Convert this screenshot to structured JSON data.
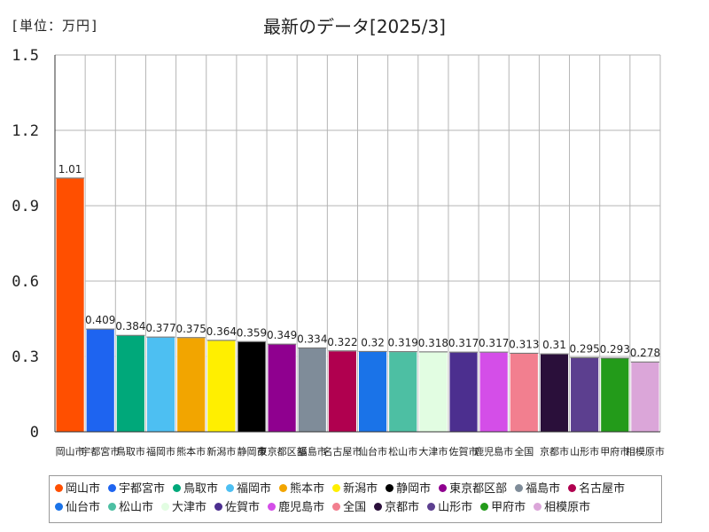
{
  "unit_label": "[単位：万円]",
  "chart_data": {
    "type": "bar",
    "title": "最新のデータ[2025/3]",
    "xlabel": "",
    "ylabel": "単位：万円",
    "ylim": [
      0,
      1.5
    ],
    "yticks": [
      "0",
      "0.3",
      "0.6",
      "0.9",
      "1.2",
      "1.5"
    ],
    "ytick_values": [
      0,
      0.3,
      0.6,
      0.9,
      1.2,
      1.5
    ],
    "grid": true,
    "legend_position": "bottom",
    "categories": [
      "岡山市",
      "宇都宮市",
      "鳥取市",
      "福岡市",
      "熊本市",
      "新潟市",
      "静岡市",
      "東京都区部",
      "福島市",
      "名古屋市",
      "仙台市",
      "松山市",
      "大津市",
      "佐賀市",
      "鹿児島市",
      "全国",
      "京都市",
      "山形市",
      "甲府市",
      "相模原市"
    ],
    "values": [
      1.01,
      0.409,
      0.384,
      0.377,
      0.375,
      0.364,
      0.359,
      0.349,
      0.334,
      0.322,
      0.32,
      0.319,
      0.318,
      0.317,
      0.317,
      0.313,
      0.31,
      0.295,
      0.293,
      0.278
    ],
    "value_labels": [
      "1.01",
      "0.409",
      "0.384",
      "0.377",
      "0.375",
      "0.364",
      "0.359",
      "0.349",
      "0.334",
      "0.322",
      "0.32",
      "0.319",
      "0.318",
      "0.317",
      "0.317",
      "0.313",
      "0.31",
      "0.295",
      "0.293",
      "0.278"
    ],
    "colors": [
      "#ff4f00",
      "#1e64f0",
      "#00a87a",
      "#4dbff2",
      "#f2a500",
      "#ffef00",
      "#000000",
      "#8f008f",
      "#7f8c99",
      "#b0004f",
      "#1a73e8",
      "#4dbfa3",
      "#e2fde2",
      "#4c2f8f",
      "#d44ee8",
      "#f27f8f",
      "#2a0f3a",
      "#5c3f8f",
      "#239b1a",
      "#dba6d9"
    ]
  }
}
